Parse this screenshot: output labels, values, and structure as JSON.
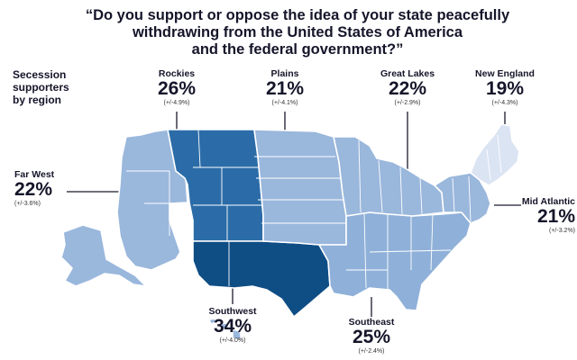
{
  "title": {
    "line1": "“Do you support or oppose the idea of your state peacefully",
    "line2": "withdrawing from the United States of America",
    "line3": "and the federal government?”"
  },
  "legend_heading": {
    "line1": "Secession",
    "line2": "supporters",
    "line3": "by region"
  },
  "regions": {
    "rockies": {
      "name": "Rockies",
      "pct": "26%",
      "moe": "(+/-4.9%)",
      "pct_value": 26,
      "color": "#2b6ca8"
    },
    "plains": {
      "name": "Plains",
      "pct": "21%",
      "moe": "(+/-4.1%)",
      "pct_value": 21,
      "color": "#9ab7dc"
    },
    "great_lakes": {
      "name": "Great Lakes",
      "pct": "22%",
      "moe": "(+/-2.9%)",
      "pct_value": 22,
      "color": "#9ab7dc"
    },
    "new_england": {
      "name": "New England",
      "pct": "19%",
      "moe": "(+/-4.3%)",
      "pct_value": 19,
      "color": "#dbe4f3"
    },
    "far_west": {
      "name": "Far West",
      "pct": "22%",
      "moe": "(+/-3.6%)",
      "pct_value": 22,
      "color": "#9ab7dc"
    },
    "mid_atlantic": {
      "name": "Mid Atlantic",
      "pct": "21%",
      "moe": "(+/-3.2%)",
      "pct_value": 21,
      "color": "#9ab7dc"
    },
    "southwest": {
      "name": "Southwest",
      "pct": "34%",
      "moe": "(+/-4.0%)",
      "pct_value": 34,
      "color": "#0f4d85"
    },
    "southeast": {
      "name": "Southeast",
      "pct": "25%",
      "moe": "(+/-2.4%)",
      "pct_value": 25,
      "color": "#8fb0d8"
    }
  }
}
